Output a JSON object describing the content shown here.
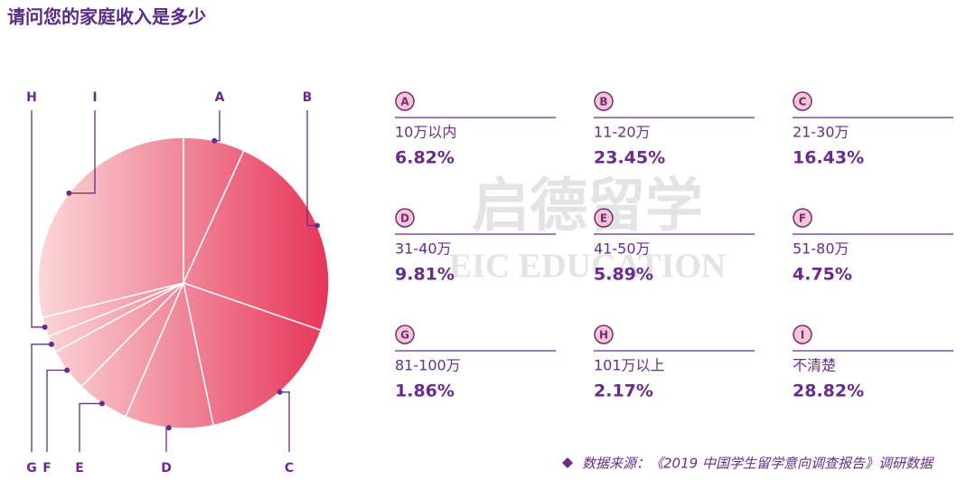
{
  "chart_data": {
    "type": "pie",
    "title": "请问您的家庭收入是多少",
    "categories": [
      "A",
      "B",
      "C",
      "D",
      "E",
      "F",
      "G",
      "H",
      "I"
    ],
    "descriptions": [
      "10万以内",
      "11-20万",
      "21-30万",
      "31-40万",
      "41-50万",
      "51-80万",
      "81-100万",
      "101万以上",
      "不清楚"
    ],
    "values": [
      6.82,
      23.45,
      16.43,
      9.81,
      5.89,
      4.75,
      1.86,
      2.17,
      28.82
    ],
    "value_labels": [
      "6.82%",
      "23.45%",
      "16.43%",
      "9.81%",
      "5.89%",
      "4.75%",
      "1.86%",
      "2.17%",
      "28.82%"
    ],
    "color_light": "#fbd9d9",
    "color_dark": "#e63459",
    "source": "数据来源：《2019 中国学生留学意向调查报告》调研数据"
  },
  "watermark": {
    "cn": "启德留学",
    "en": "EIC EDUCATION"
  }
}
